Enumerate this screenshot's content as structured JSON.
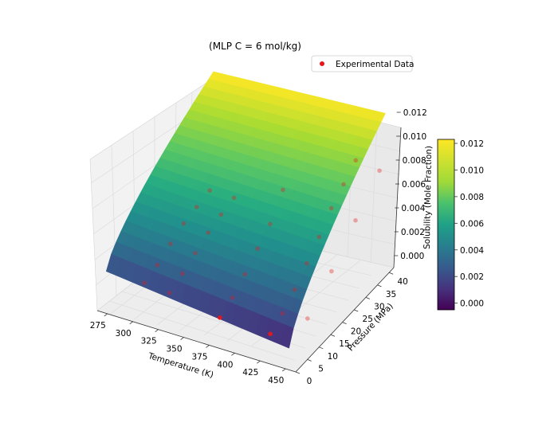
{
  "chart_data": {
    "type": "surface3d",
    "title": "(MLP  C = 6 mol/kg)",
    "xlabel": "Temperature (K)",
    "ylabel": "Pressure (MPa)",
    "zlabel": "Solubility (Mole Fraction)",
    "xlim": [
      265,
      460
    ],
    "ylim": [
      0,
      42
    ],
    "zlim": [
      -0.001,
      0.013
    ],
    "x_ticks": [
      "275",
      "300",
      "325",
      "350",
      "375",
      "400",
      "425",
      "450"
    ],
    "y_ticks": [
      "0",
      "5",
      "10",
      "15",
      "20",
      "25",
      "30",
      "35",
      "40"
    ],
    "z_ticks": [
      "0.000",
      "0.002",
      "0.004",
      "0.006",
      "0.008",
      "0.010",
      "0.012"
    ],
    "colorbar": {
      "colormap": "viridis",
      "range": [
        -0.0005,
        0.0123
      ],
      "ticks": [
        "0.000",
        "0.002",
        "0.004",
        "0.006",
        "0.008",
        "0.010",
        "0.012"
      ]
    },
    "legend": {
      "position": "top-right",
      "entries": [
        "Experimental Data"
      ],
      "marker_color": "#e8161b"
    },
    "surface_corners": {
      "T_min_P_min": 0.0025,
      "T_min_P_max": 0.0123,
      "T_max_P_min": 0.0008,
      "T_max_P_max": 0.0122
    },
    "experimental_points": [
      {
        "T": 298,
        "P": 5,
        "z": 0.0013
      },
      {
        "T": 298,
        "P": 10,
        "z": 0.0019
      },
      {
        "T": 298,
        "P": 15,
        "z": 0.0028
      },
      {
        "T": 298,
        "P": 20,
        "z": 0.0036
      },
      {
        "T": 298,
        "P": 25,
        "z": 0.0041
      },
      {
        "T": 298,
        "P": 30,
        "z": 0.0046
      },
      {
        "T": 323,
        "P": 5,
        "z": 0.0011
      },
      {
        "T": 323,
        "P": 10,
        "z": 0.0018
      },
      {
        "T": 323,
        "P": 15,
        "z": 0.0026
      },
      {
        "T": 323,
        "P": 20,
        "z": 0.0034
      },
      {
        "T": 323,
        "P": 25,
        "z": 0.004
      },
      {
        "T": 323,
        "P": 30,
        "z": 0.0045
      },
      {
        "T": 373,
        "P": 5,
        "z": 0.0003
      },
      {
        "T": 373,
        "P": 10,
        "z": 0.001
      },
      {
        "T": 373,
        "P": 15,
        "z": 0.002
      },
      {
        "T": 373,
        "P": 20,
        "z": 0.0032
      },
      {
        "T": 373,
        "P": 25,
        "z": 0.0043
      },
      {
        "T": 373,
        "P": 30,
        "z": 0.0062
      },
      {
        "T": 423,
        "P": 5,
        "z": 0.0002
      },
      {
        "T": 423,
        "P": 10,
        "z": 0.0009
      },
      {
        "T": 423,
        "P": 15,
        "z": 0.0019
      },
      {
        "T": 423,
        "P": 20,
        "z": 0.0031
      },
      {
        "T": 423,
        "P": 25,
        "z": 0.0043
      },
      {
        "T": 423,
        "P": 30,
        "z": 0.0057
      },
      {
        "T": 423,
        "P": 35,
        "z": 0.0067
      },
      {
        "T": 423,
        "P": 40,
        "z": 0.0077
      },
      {
        "T": 448,
        "P": 10,
        "z": 0.0011
      },
      {
        "T": 448,
        "P": 20,
        "z": 0.003
      },
      {
        "T": 448,
        "P": 30,
        "z": 0.0052
      },
      {
        "T": 448,
        "P": 40,
        "z": 0.0073
      }
    ]
  }
}
